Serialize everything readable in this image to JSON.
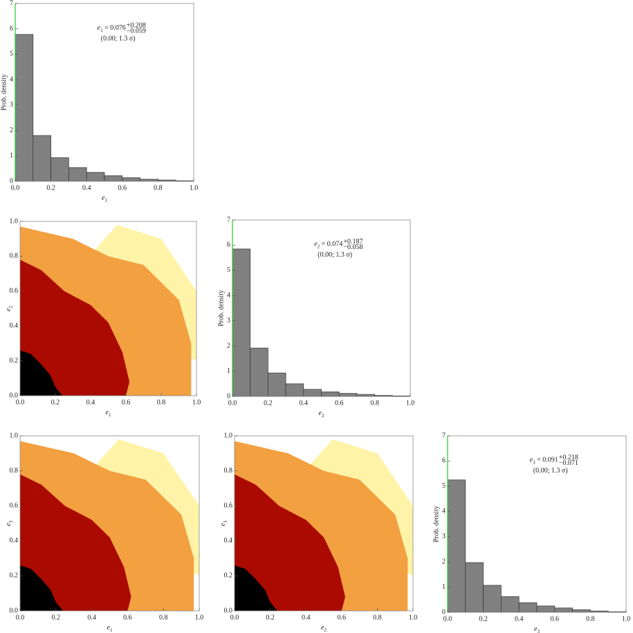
{
  "chart_data": [
    {
      "type": "histogram",
      "color": "#808080",
      "axis_color": "#22cc22",
      "bins": [
        0,
        0.1,
        0.2,
        0.3,
        0.4,
        0.5,
        0.6,
        0.7,
        0.8,
        0.9,
        1.0
      ],
      "values": [
        5.78,
        1.8,
        0.93,
        0.54,
        0.35,
        0.22,
        0.14,
        0.08,
        0.05,
        0.02
      ],
      "xlim": [
        0,
        1
      ],
      "ylim": [
        0,
        7
      ],
      "xticks": [
        {
          "value": 0,
          "label": "0.0"
        },
        {
          "value": 0.2,
          "label": "0.2"
        },
        {
          "value": 0.4,
          "label": "0.4"
        },
        {
          "value": 0.6,
          "label": "0.6"
        },
        {
          "value": 0.8,
          "label": "0.8"
        },
        {
          "value": 1,
          "label": "1.0"
        }
      ],
      "yticks": [
        0,
        1,
        2,
        3,
        4,
        5,
        6,
        7
      ],
      "xlabel": {
        "symbol": "e",
        "sub": "1"
      },
      "ylabel": "Prob. density",
      "annotation": {
        "symbol": "e",
        "sub": "1",
        "text": " = 0.076",
        "upper": "+0.208",
        "lower": "−0.059",
        "note": "(0.00; 1.3 σ)",
        "note_color": "#22cc22"
      }
    },
    {
      "type": "density",
      "xlim": [
        0,
        1
      ],
      "ylim": [
        0,
        1
      ],
      "xticks": [
        {
          "value": 0,
          "label": "0.0"
        },
        {
          "value": 0.2,
          "label": "0.2"
        },
        {
          "value": 0.4,
          "label": "0.4"
        },
        {
          "value": 0.6,
          "label": "0.6"
        },
        {
          "value": 0.8,
          "label": "0.8"
        },
        {
          "value": 1,
          "label": "1.0"
        }
      ],
      "yticks": [
        {
          "value": 0,
          "label": "0.0"
        },
        {
          "value": 0.2,
          "label": "0.2"
        },
        {
          "value": 0.4,
          "label": "0.4"
        },
        {
          "value": 0.6,
          "label": "0.6"
        },
        {
          "value": 0.8,
          "label": "0.8"
        },
        {
          "value": 1,
          "label": "1.0"
        }
      ],
      "xlabel": {
        "symbol": "e",
        "sub": "1"
      },
      "ylabel": {
        "symbol": "e",
        "sub": "2"
      }
    },
    {
      "type": "histogram",
      "color": "#808080",
      "axis_color": "#22cc22",
      "bins": [
        0,
        0.1,
        0.2,
        0.3,
        0.4,
        0.5,
        0.6,
        0.7,
        0.8,
        0.9,
        1.0
      ],
      "values": [
        5.85,
        1.92,
        0.93,
        0.5,
        0.28,
        0.18,
        0.12,
        0.08,
        0.04,
        0.02
      ],
      "xlim": [
        0,
        1
      ],
      "ylim": [
        0,
        7
      ],
      "xticks": [
        {
          "value": 0,
          "label": "0.0"
        },
        {
          "value": 0.2,
          "label": "0.2"
        },
        {
          "value": 0.4,
          "label": "0.4"
        },
        {
          "value": 0.6,
          "label": "0.6"
        },
        {
          "value": 0.8,
          "label": "0.8"
        },
        {
          "value": 1,
          "label": "1.0"
        }
      ],
      "yticks": [
        0,
        1,
        2,
        3,
        4,
        5,
        6,
        7
      ],
      "xlabel": {
        "symbol": "e",
        "sub": "2"
      },
      "ylabel": "Prob. density",
      "annotation": {
        "symbol": "e",
        "sub": "2",
        "text": " = 0.074",
        "upper": "+0.187",
        "lower": "−0.058",
        "note": "(0.00; 1.3 σ)",
        "note_color": "#22cc22"
      }
    },
    {
      "type": "density",
      "xlim": [
        0,
        1
      ],
      "ylim": [
        0,
        1
      ],
      "xticks": [
        {
          "value": 0,
          "label": "0.0"
        },
        {
          "value": 0.2,
          "label": "0.2"
        },
        {
          "value": 0.4,
          "label": "0.4"
        },
        {
          "value": 0.6,
          "label": "0.6"
        },
        {
          "value": 0.8,
          "label": "0.8"
        },
        {
          "value": 1,
          "label": "1.0"
        }
      ],
      "yticks": [
        {
          "value": 0,
          "label": "0.0"
        },
        {
          "value": 0.2,
          "label": "0.2"
        },
        {
          "value": 0.4,
          "label": "0.4"
        },
        {
          "value": 0.6,
          "label": "0.6"
        },
        {
          "value": 0.8,
          "label": "0.8"
        },
        {
          "value": 1,
          "label": "1.0"
        }
      ],
      "xlabel": {
        "symbol": "e",
        "sub": "1"
      },
      "ylabel": {
        "symbol": "e",
        "sub": "3"
      }
    },
    {
      "type": "density",
      "xlim": [
        0,
        1
      ],
      "ylim": [
        0,
        1
      ],
      "xticks": [
        {
          "value": 0,
          "label": "0.0"
        },
        {
          "value": 0.2,
          "label": "0.2"
        },
        {
          "value": 0.4,
          "label": "0.4"
        },
        {
          "value": 0.6,
          "label": "0.6"
        },
        {
          "value": 0.8,
          "label": "0.8"
        },
        {
          "value": 1,
          "label": "1.0"
        }
      ],
      "yticks": [
        {
          "value": 0,
          "label": "0.0"
        },
        {
          "value": 0.2,
          "label": "0.2"
        },
        {
          "value": 0.4,
          "label": "0.4"
        },
        {
          "value": 0.6,
          "label": "0.6"
        },
        {
          "value": 0.8,
          "label": "0.8"
        },
        {
          "value": 1,
          "label": "1.0"
        }
      ],
      "xlabel": {
        "symbol": "e",
        "sub": "2"
      },
      "ylabel": {
        "symbol": "e",
        "sub": "3"
      }
    },
    {
      "type": "histogram",
      "color": "#808080",
      "axis_color": "#22cc22",
      "bins": [
        0,
        0.1,
        0.2,
        0.3,
        0.4,
        0.5,
        0.6,
        0.7,
        0.8,
        0.9,
        1.0
      ],
      "values": [
        5.25,
        1.97,
        1.07,
        0.62,
        0.38,
        0.25,
        0.17,
        0.1,
        0.05,
        0.02
      ],
      "xlim": [
        0,
        1
      ],
      "ylim": [
        0,
        7
      ],
      "xticks": [
        {
          "value": 0,
          "label": "0.0"
        },
        {
          "value": 0.2,
          "label": "0.2"
        },
        {
          "value": 0.4,
          "label": "0.4"
        },
        {
          "value": 0.6,
          "label": "0.6"
        },
        {
          "value": 0.8,
          "label": "0.8"
        },
        {
          "value": 1,
          "label": "1.0"
        }
      ],
      "yticks": [
        0,
        1,
        2,
        3,
        4,
        5,
        6,
        7
      ],
      "xlabel": {
        "symbol": "e",
        "sub": "3"
      },
      "ylabel": "Prob. density",
      "annotation": {
        "symbol": "e",
        "sub": "3",
        "text": " = 0.091",
        "upper": "+0.218",
        "lower": "−0.071",
        "note": "(0.00; 1.3 σ)",
        "note_color": "#22cc22"
      }
    }
  ]
}
